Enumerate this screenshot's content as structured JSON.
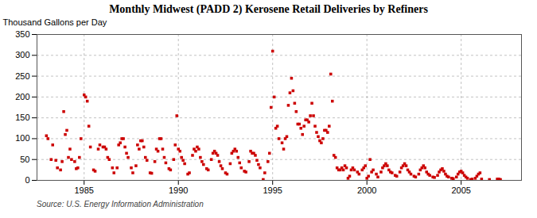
{
  "chart_data": {
    "type": "scatter",
    "title": "Monthly Midwest (PADD 2) Kerosene Retail Deliveries by Refiners",
    "ylabel": "Thousand Gallons per Day",
    "caption": "Source: U.S. Energy Information Administration",
    "color": "#cc0000",
    "marker": "square",
    "grid": true,
    "xlim": [
      1982.5,
      2008.2
    ],
    "ylim": [
      0,
      350
    ],
    "xticks": [
      1985,
      1990,
      1995,
      2000,
      2005
    ],
    "yticks": [
      0,
      50,
      100,
      150,
      200,
      250,
      300,
      350
    ],
    "x": [
      1983.0,
      1983.083,
      1983.25,
      1983.333,
      1983.5,
      1983.583,
      1983.75,
      1983.833,
      1983.917,
      1984.0,
      1984.083,
      1984.167,
      1984.25,
      1984.333,
      1984.5,
      1984.583,
      1984.667,
      1984.75,
      1984.833,
      1985.0,
      1985.083,
      1985.167,
      1985.25,
      1985.333,
      1985.5,
      1985.583,
      1985.75,
      1985.833,
      1986.0,
      1986.083,
      1986.167,
      1986.25,
      1986.333,
      1986.5,
      1986.583,
      1986.75,
      1986.833,
      1986.917,
      1987.0,
      1987.083,
      1987.167,
      1987.25,
      1987.333,
      1987.5,
      1987.583,
      1987.75,
      1987.833,
      1987.917,
      1988.0,
      1988.083,
      1988.167,
      1988.25,
      1988.333,
      1988.5,
      1988.583,
      1988.75,
      1988.833,
      1988.917,
      1989.0,
      1989.083,
      1989.167,
      1989.25,
      1989.333,
      1989.5,
      1989.583,
      1989.75,
      1989.833,
      1989.917,
      1990.0,
      1990.083,
      1990.167,
      1990.25,
      1990.333,
      1990.5,
      1990.583,
      1990.75,
      1990.833,
      1990.917,
      1991.0,
      1991.083,
      1991.167,
      1991.25,
      1991.333,
      1991.5,
      1991.583,
      1991.75,
      1991.833,
      1991.917,
      1992.0,
      1992.083,
      1992.167,
      1992.25,
      1992.333,
      1992.5,
      1992.583,
      1992.75,
      1992.833,
      1992.917,
      1993.0,
      1993.083,
      1993.167,
      1993.25,
      1993.333,
      1993.5,
      1993.583,
      1993.75,
      1993.833,
      1993.917,
      1994.0,
      1994.083,
      1994.167,
      1994.25,
      1994.333,
      1994.5,
      1994.583,
      1994.75,
      1994.833,
      1994.917,
      1995.0,
      1995.083,
      1995.167,
      1995.25,
      1995.333,
      1995.5,
      1995.583,
      1995.667,
      1995.75,
      1995.833,
      1995.917,
      1996.0,
      1996.083,
      1996.167,
      1996.25,
      1996.333,
      1996.417,
      1996.5,
      1996.583,
      1996.667,
      1996.75,
      1996.833,
      1996.917,
      1997.0,
      1997.083,
      1997.167,
      1997.25,
      1997.333,
      1997.417,
      1997.5,
      1997.583,
      1997.667,
      1997.75,
      1997.833,
      1997.917,
      1998.0,
      1998.083,
      1998.167,
      1998.25,
      1998.333,
      1998.417,
      1998.5,
      1998.583,
      1998.667,
      1998.75,
      1998.833,
      1998.917,
      1999.0,
      1999.083,
      1999.167,
      1999.25,
      1999.333,
      1999.5,
      1999.583,
      1999.75,
      1999.833,
      1999.917,
      2000.0,
      2000.083,
      2000.167,
      2000.25,
      2000.333,
      2000.5,
      2000.583,
      2000.75,
      2000.833,
      2000.917,
      2001.0,
      2001.083,
      2001.167,
      2001.25,
      2001.333,
      2001.5,
      2001.583,
      2001.75,
      2001.833,
      2001.917,
      2002.0,
      2002.083,
      2002.167,
      2002.25,
      2002.333,
      2002.5,
      2002.583,
      2002.75,
      2002.833,
      2002.917,
      2003.0,
      2003.083,
      2003.167,
      2003.25,
      2003.333,
      2003.5,
      2003.583,
      2003.75,
      2003.833,
      2003.917,
      2004.0,
      2004.083,
      2004.167,
      2004.25,
      2004.333,
      2004.5,
      2004.583,
      2004.75,
      2004.833,
      2004.917,
      2005.0,
      2005.083,
      2005.167,
      2005.25,
      2005.333,
      2005.5,
      2005.583,
      2005.75,
      2005.833,
      2005.917,
      2006.0,
      2006.083,
      2006.5,
      2006.917,
      2007.0,
      2007.083
    ],
    "values": [
      107,
      100,
      50,
      85,
      48,
      30,
      25,
      45,
      165,
      110,
      120,
      55,
      75,
      50,
      45,
      28,
      30,
      55,
      100,
      205,
      200,
      190,
      130,
      80,
      25,
      22,
      75,
      85,
      80,
      80,
      75,
      55,
      50,
      30,
      18,
      30,
      85,
      90,
      100,
      100,
      80,
      65,
      55,
      30,
      18,
      35,
      85,
      75,
      95,
      95,
      80,
      55,
      48,
      18,
      17,
      45,
      75,
      70,
      100,
      100,
      75,
      55,
      42,
      28,
      25,
      50,
      85,
      155,
      75,
      70,
      55,
      48,
      40,
      15,
      18,
      60,
      75,
      70,
      80,
      75,
      55,
      45,
      38,
      28,
      25,
      50,
      65,
      70,
      65,
      60,
      45,
      35,
      28,
      18,
      15,
      40,
      65,
      70,
      75,
      70,
      55,
      42,
      30,
      22,
      20,
      45,
      70,
      65,
      65,
      60,
      48,
      38,
      30,
      2,
      18,
      45,
      65,
      175,
      310,
      200,
      125,
      130,
      100,
      90,
      75,
      100,
      105,
      180,
      210,
      245,
      215,
      185,
      165,
      135,
      135,
      125,
      110,
      130,
      145,
      145,
      140,
      155,
      185,
      155,
      130,
      115,
      105,
      95,
      90,
      100,
      120,
      120,
      115,
      130,
      255,
      190,
      60,
      55,
      30,
      25,
      25,
      30,
      25,
      35,
      30,
      5,
      10,
      25,
      30,
      25,
      20,
      15,
      25,
      30,
      35,
      5,
      10,
      50,
      20,
      25,
      15,
      8,
      20,
      30,
      35,
      40,
      35,
      25,
      20,
      18,
      12,
      10,
      20,
      30,
      35,
      40,
      35,
      25,
      20,
      15,
      10,
      8,
      15,
      25,
      30,
      35,
      30,
      20,
      15,
      12,
      8,
      7,
      12,
      20,
      25,
      28,
      22,
      15,
      10,
      8,
      5,
      4,
      8,
      15,
      20,
      22,
      18,
      12,
      8,
      5,
      2,
      3,
      5,
      10,
      15,
      18,
      3,
      2,
      3,
      3,
      2
    ]
  }
}
